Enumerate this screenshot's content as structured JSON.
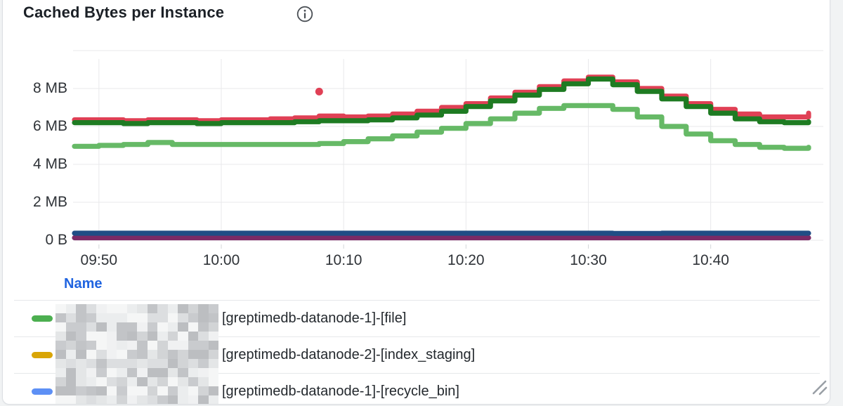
{
  "panel": {
    "title": "Cached Bytes per Instance",
    "info_icon": "info-circle"
  },
  "chart_data": {
    "type": "line",
    "title": "Cached Bytes per Instance",
    "xlabel": "",
    "ylabel": "",
    "unit": "bytes",
    "grid": true,
    "ylim_mb": [
      0,
      10
    ],
    "y_ticks": [
      {
        "value_mb": 0,
        "label": "0 B"
      },
      {
        "value_mb": 2,
        "label": "2 MB"
      },
      {
        "value_mb": 4,
        "label": "4 MB"
      },
      {
        "value_mb": 6,
        "label": "6 MB"
      },
      {
        "value_mb": 8,
        "label": "8 MB"
      }
    ],
    "x_axis": {
      "span_minutes": 60,
      "tick_offsets_min": [
        2,
        12,
        22,
        32,
        42,
        52
      ],
      "tick_labels": [
        "09:50",
        "10:00",
        "10:10",
        "10:20",
        "10:30",
        "10:40"
      ]
    },
    "step_minutes": 2,
    "series": [
      {
        "name": "series-light-green",
        "color": "#66b966",
        "values_mb": [
          4.95,
          5.0,
          5.05,
          5.15,
          5.05,
          5.05,
          5.05,
          5.05,
          5.05,
          5.05,
          5.1,
          5.2,
          5.35,
          5.5,
          5.7,
          5.9,
          6.15,
          6.4,
          6.7,
          6.95,
          7.1,
          7.1,
          6.9,
          6.5,
          6.0,
          5.6,
          5.25,
          5.05,
          4.9,
          4.85,
          4.9
        ]
      },
      {
        "name": "series-red",
        "color": "#e04055",
        "values_mb": [
          6.35,
          6.35,
          6.3,
          6.35,
          6.35,
          6.3,
          6.35,
          6.35,
          6.4,
          6.45,
          6.55,
          6.5,
          6.55,
          6.65,
          6.8,
          7.0,
          7.2,
          7.5,
          7.8,
          8.1,
          8.4,
          8.6,
          8.35,
          8.0,
          7.6,
          7.2,
          6.9,
          6.65,
          6.5,
          6.5,
          6.7
        ]
      },
      {
        "name": "series-dark-green",
        "color": "#1e7b22",
        "values_mb": [
          6.2,
          6.2,
          6.15,
          6.2,
          6.2,
          6.15,
          6.2,
          6.2,
          6.2,
          6.25,
          6.3,
          6.3,
          6.35,
          6.45,
          6.6,
          6.8,
          7.05,
          7.35,
          7.65,
          7.95,
          8.25,
          8.5,
          8.2,
          7.85,
          7.45,
          7.05,
          6.7,
          6.4,
          6.25,
          6.2,
          6.25
        ]
      },
      {
        "name": "series-purple",
        "color": "#7b2a66",
        "values_mb": [
          0.13,
          0.13,
          0.13,
          0.13,
          0.13,
          0.13,
          0.13,
          0.13,
          0.13,
          0.13,
          0.13,
          0.13,
          0.13,
          0.13,
          0.13,
          0.13,
          0.13,
          0.13,
          0.13,
          0.13,
          0.13,
          0.13,
          0.13,
          0.13,
          0.13,
          0.13,
          0.13,
          0.13,
          0.13,
          0.13,
          0.13
        ]
      },
      {
        "name": "series-blue",
        "color": "#204d85",
        "values_mb": [
          0.37,
          0.37,
          0.37,
          0.37,
          0.37,
          0.37,
          0.37,
          0.37,
          0.37,
          0.37,
          0.37,
          0.37,
          0.37,
          0.37,
          0.37,
          0.37,
          0.37,
          0.37,
          0.37,
          0.37,
          0.37,
          0.37,
          0.36,
          0.36,
          0.37,
          0.37,
          0.37,
          0.37,
          0.37,
          0.37,
          0.37
        ]
      }
    ],
    "outlier": {
      "series": "series-red",
      "offset_min": 20,
      "value_mb": 6.8
    },
    "legend_position": "bottom-table"
  },
  "legend": {
    "header": "Name",
    "rows": [
      {
        "color": "#4caf50",
        "label": "[greptimedb-datanode-1]-[file]",
        "redacted_prefix": true
      },
      {
        "color": "#d9a505",
        "label": "[greptimedb-datanode-2]-[index_staging]",
        "redacted_prefix": true
      },
      {
        "color": "#5d90f5",
        "label": "[greptimedb-datanode-1]-[recycle_bin]",
        "redacted_prefix": true
      }
    ]
  },
  "colors": {
    "page_background": "#f1f3f4",
    "card_background": "#ffffff",
    "card_border": "#dcdfe3",
    "gridline": "#e8e9eb",
    "axis_text": "#2f3338",
    "title_text": "#1b2026",
    "legend_header_accent": "#2064e0",
    "legend_text": "#24292e",
    "resize_handle": "#9aa0a6"
  }
}
